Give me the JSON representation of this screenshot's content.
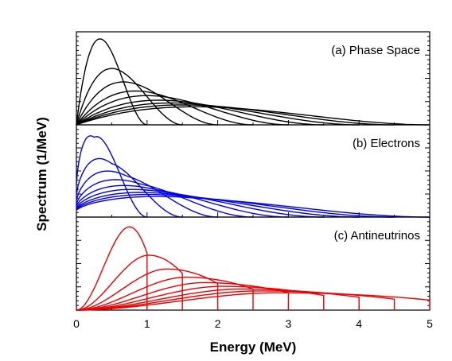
{
  "chart_data": {
    "type": "line",
    "xlabel": "Energy (MeV)",
    "ylabel": "Spectrum (1/MeV)",
    "x_ticks": [
      "0",
      "1",
      "2",
      "3",
      "4",
      "5"
    ],
    "xlim": [
      0,
      5
    ],
    "grid": false,
    "endpoints_mev": [
      1.0,
      1.5,
      2.0,
      2.5,
      3.0,
      3.5,
      4.0,
      4.5,
      5.0
    ],
    "panels": [
      {
        "label": "(a) Phase Space",
        "color": "#000000",
        "series": [
          {
            "endpoint": 1.0,
            "peak_x": 0.34,
            "peak_y": 0.94
          },
          {
            "endpoint": 1.5,
            "peak_x": 0.56,
            "peak_y": 0.61
          },
          {
            "endpoint": 2.0,
            "peak_x": 0.78,
            "peak_y": 0.46
          },
          {
            "endpoint": 2.5,
            "peak_x": 1.0,
            "peak_y": 0.36
          },
          {
            "endpoint": 3.0,
            "peak_x": 1.21,
            "peak_y": 0.31
          },
          {
            "endpoint": 3.5,
            "peak_x": 1.43,
            "peak_y": 0.26
          },
          {
            "endpoint": 4.0,
            "peak_x": 1.64,
            "peak_y": 0.23
          },
          {
            "endpoint": 4.5,
            "peak_x": 1.85,
            "peak_y": 0.21
          },
          {
            "endpoint": 5.0,
            "peak_x": 2.06,
            "peak_y": 0.19
          }
        ]
      },
      {
        "label": "(b) Electrons",
        "color": "#0000ee",
        "series": [
          {
            "endpoint": 1.0,
            "peak_x": 0.25,
            "peak_y": 0.88
          },
          {
            "endpoint": 1.5,
            "peak_x": 0.5,
            "peak_y": 0.59
          },
          {
            "endpoint": 2.0,
            "peak_x": 0.72,
            "peak_y": 0.45
          },
          {
            "endpoint": 2.5,
            "peak_x": 0.93,
            "peak_y": 0.36
          },
          {
            "endpoint": 3.0,
            "peak_x": 1.14,
            "peak_y": 0.3
          },
          {
            "endpoint": 3.5,
            "peak_x": 1.36,
            "peak_y": 0.26
          },
          {
            "endpoint": 4.0,
            "peak_x": 1.57,
            "peak_y": 0.23
          },
          {
            "endpoint": 4.5,
            "peak_x": 1.78,
            "peak_y": 0.21
          },
          {
            "endpoint": 5.0,
            "peak_x": 2.0,
            "peak_y": 0.19
          }
        ]
      },
      {
        "label": "(c) Antineutrinos",
        "color": "#ee0000",
        "series": [
          {
            "endpoint": 1.0,
            "peak_x": 0.75,
            "peak_y": 0.91,
            "end_y": 0.62
          },
          {
            "endpoint": 1.5,
            "peak_x": 1.02,
            "peak_y": 0.6,
            "end_y": 0.4
          },
          {
            "endpoint": 2.0,
            "peak_x": 1.28,
            "peak_y": 0.45,
            "end_y": 0.29
          },
          {
            "endpoint": 2.5,
            "peak_x": 1.55,
            "peak_y": 0.36,
            "end_y": 0.23
          },
          {
            "endpoint": 3.0,
            "peak_x": 1.8,
            "peak_y": 0.3,
            "end_y": 0.19
          },
          {
            "endpoint": 3.5,
            "peak_x": 2.06,
            "peak_y": 0.26,
            "end_y": 0.16
          },
          {
            "endpoint": 4.0,
            "peak_x": 2.32,
            "peak_y": 0.23,
            "end_y": 0.14
          },
          {
            "endpoint": 4.5,
            "peak_x": 2.58,
            "peak_y": 0.21,
            "end_y": 0.12
          },
          {
            "endpoint": 5.0,
            "peak_x": 2.84,
            "peak_y": 0.19,
            "end_y": 0.11
          }
        ]
      }
    ]
  }
}
